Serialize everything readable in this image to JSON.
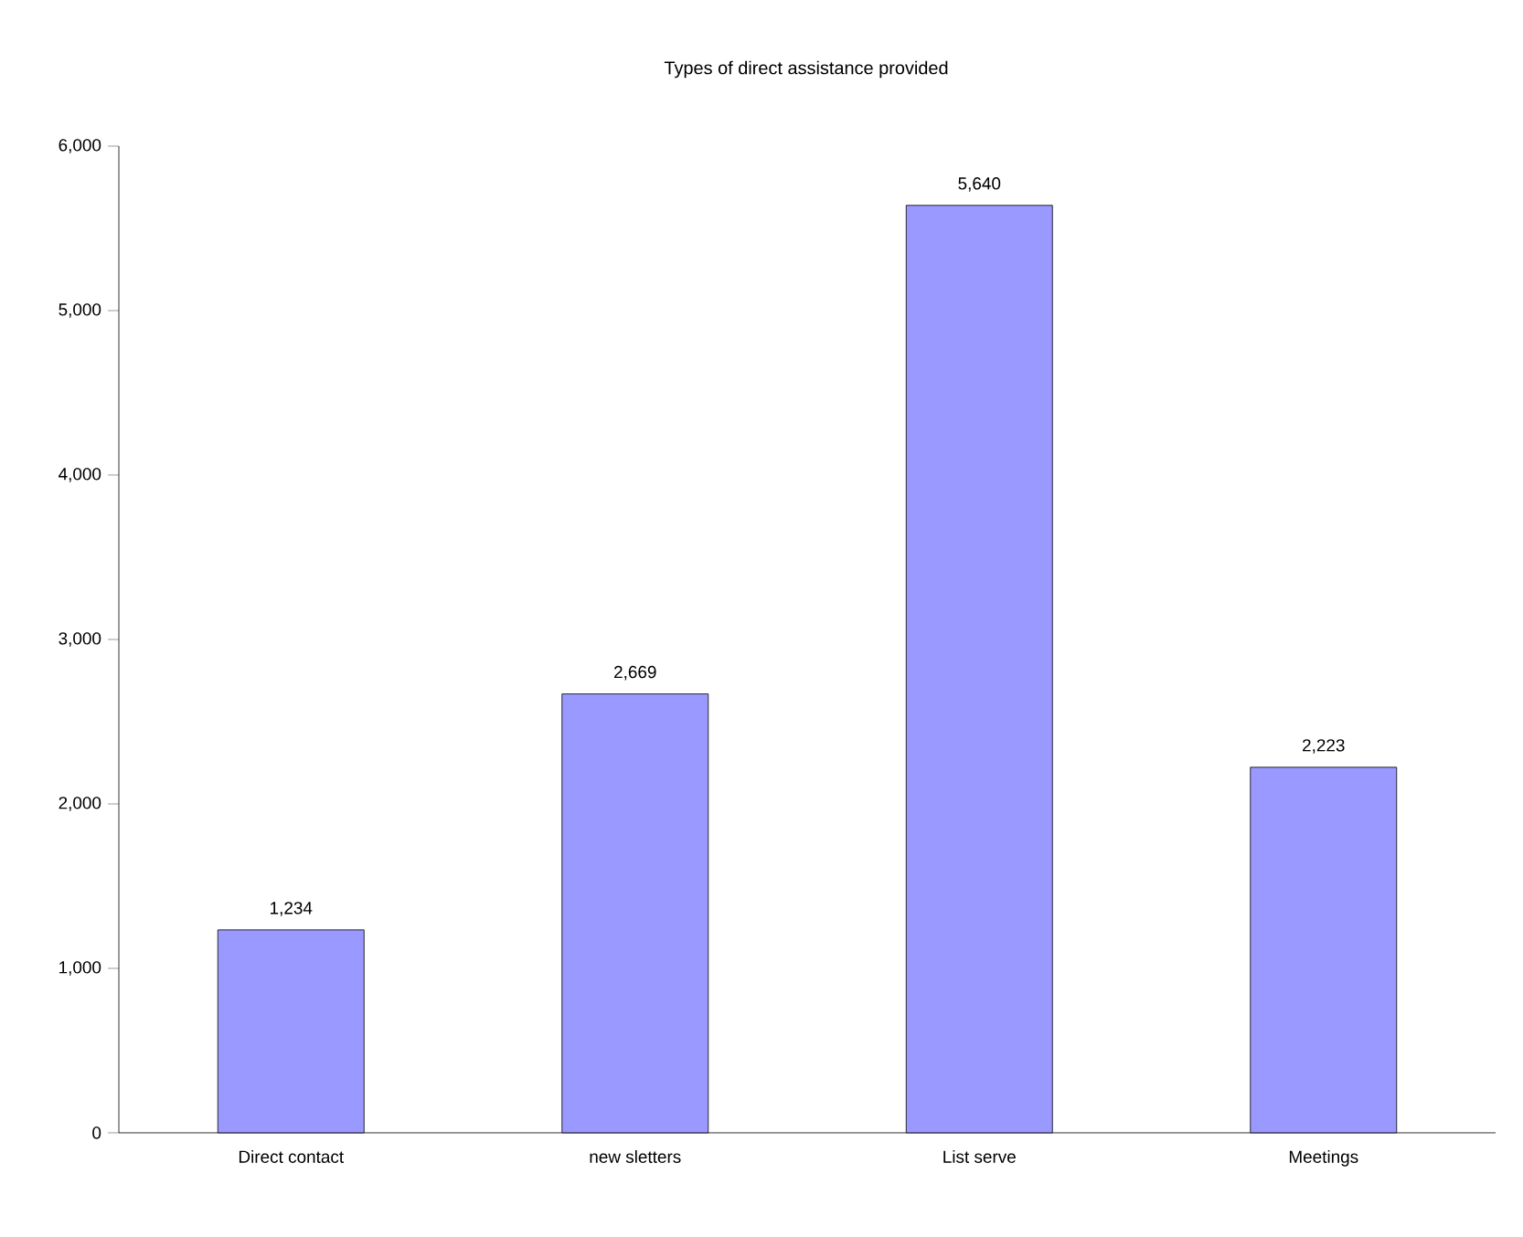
{
  "chart_data": {
    "type": "bar",
    "title": "Types of direct assistance provided",
    "categories": [
      "Direct contact",
      "new sletters",
      "List serve",
      "Meetings"
    ],
    "values": [
      1234,
      2669,
      5640,
      2223
    ],
    "value_labels": [
      "1,234",
      "2,669",
      "5,640",
      "2,223"
    ],
    "color": "#9999ff",
    "ylim": [
      0,
      6000
    ],
    "yticks": [
      {
        "value": 0,
        "label": "0"
      },
      {
        "value": 1000,
        "label": "1,000"
      },
      {
        "value": 2000,
        "label": "2,000"
      },
      {
        "value": 3000,
        "label": "3,000"
      },
      {
        "value": 4000,
        "label": "4,000"
      },
      {
        "value": 5000,
        "label": "5,000"
      },
      {
        "value": 6000,
        "label": "6,000"
      }
    ],
    "grid": false
  }
}
